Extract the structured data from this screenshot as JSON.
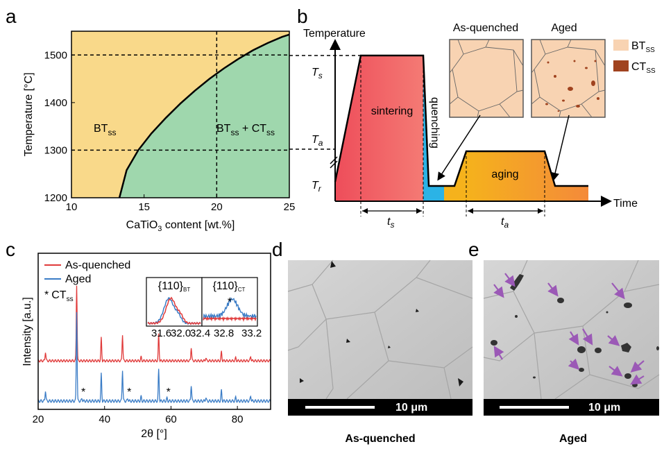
{
  "panels": {
    "a": "a",
    "b": "b",
    "c": "c",
    "d": "d",
    "e": "e"
  },
  "colors": {
    "bt_region": "#f9d98a",
    "two_phase_region": "#9fd7ad",
    "sintering": "#f05a5a",
    "quench": "#29b6e8",
    "aging": "#f6a821",
    "bt_grain": "#f8d3b2",
    "ct_precip": "#a0431f",
    "red_series": "#e03a3a",
    "blue_series": "#3a7cc6",
    "arrow": "#9b59b6"
  },
  "chart_data": [
    {
      "type": "line",
      "panel": "a",
      "xlabel_parts": [
        "CaTiO",
        "3",
        " content [wt.%]"
      ],
      "ylabel": "Temperature [°C]",
      "xlim": [
        10,
        25
      ],
      "ylim": [
        1200,
        1550
      ],
      "xticks": [
        10,
        15,
        20,
        25
      ],
      "yticks": [
        1200,
        1300,
        1400,
        1500
      ],
      "regions": [
        {
          "name": "BT",
          "sub": "ss"
        },
        {
          "name": "BT",
          "sub": "ss",
          "mid": " + CT",
          "sub2": "ss"
        }
      ],
      "series": [
        {
          "values_x": [
            13.3,
            13.8,
            14.6,
            15.5,
            16.5,
            17.5,
            18.5,
            19.5,
            20.5,
            21.5,
            22.5,
            23.5,
            24.5,
            25
          ],
          "values_y": [
            1200,
            1258,
            1300,
            1335,
            1368,
            1398,
            1425,
            1450,
            1472,
            1492,
            1510,
            1525,
            1538,
            1543
          ]
        }
      ],
      "dashed_h": [
        1500,
        1300
      ],
      "dashed_v": [
        20
      ]
    },
    {
      "type": "diagram",
      "panel": "b",
      "ylabel": "Temperature",
      "xlabel": "Time",
      "T_s": "T",
      "T_s_sub": "s",
      "T_a": "T",
      "T_a_sub": "a",
      "T_r": "T",
      "T_r_sub": "r",
      "t_s": "t",
      "t_s_sub": "s",
      "t_a": "t",
      "t_a_sub": "a",
      "steps": [
        "sintering",
        "quenching",
        "aging"
      ],
      "insets": [
        "As-quenched",
        "Aged"
      ],
      "legend": [
        {
          "name": "BT",
          "sub": "SS"
        },
        {
          "name": "CT",
          "sub": "SS"
        }
      ]
    },
    {
      "type": "line",
      "panel": "c",
      "xlabel": "2θ [°]",
      "ylabel": "Intensity [a.u.]",
      "xlim": [
        20,
        90
      ],
      "xticks": [
        20,
        40,
        60,
        80
      ],
      "legend": [
        "As-quenched",
        "Aged"
      ],
      "marker_legend": {
        "symbol": "*",
        "name": "CT",
        "sub": "ss"
      },
      "peaks": [
        {
          "x": 22.2,
          "h": 0.12
        },
        {
          "x": 31.6,
          "h": 1.0
        },
        {
          "x": 39.0,
          "h": 0.3
        },
        {
          "x": 45.4,
          "h": 0.35
        },
        {
          "x": 51.0,
          "h": 0.05
        },
        {
          "x": 56.3,
          "h": 0.35
        },
        {
          "x": 66.1,
          "h": 0.18
        },
        {
          "x": 70.5,
          "h": 0.04
        },
        {
          "x": 75.2,
          "h": 0.12
        },
        {
          "x": 79.5,
          "h": 0.04
        },
        {
          "x": 84.0,
          "h": 0.06
        }
      ],
      "ct_peaks": [
        33.2,
        47.0,
        58.8
      ],
      "inset_left": {
        "label": "{110}",
        "sub": "BT",
        "xticks": [
          "31.6",
          "32.0",
          "32.4"
        ]
      },
      "inset_right": {
        "label": "{110}",
        "sub": "CT",
        "xticks": [
          "32.8",
          "33.2"
        ]
      }
    }
  ],
  "micrographs": [
    {
      "panel": "d",
      "scalebar": "10 μm",
      "caption": "As-quenched"
    },
    {
      "panel": "e",
      "scalebar": "10 μm",
      "caption": "Aged"
    }
  ]
}
